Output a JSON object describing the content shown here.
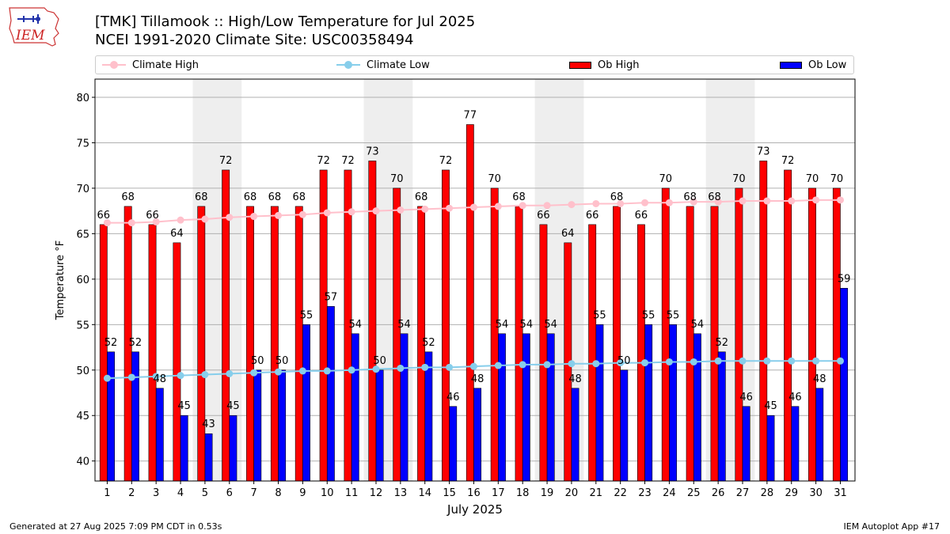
{
  "logo_text": "IEM",
  "title_line1": "[TMK] Tillamook :: High/Low Temperature for Jul 2025",
  "title_line2": "NCEI 1991-2020 Climate Site: USC00358494",
  "footer_left": "Generated at 27 Aug 2025 7:09 PM CDT in 0.53s",
  "footer_right": "IEM Autoplot App #17",
  "legend": {
    "climate_high": "Climate High",
    "climate_low": "Climate Low",
    "ob_high": "Ob High",
    "ob_low": "Ob Low"
  },
  "colors": {
    "ob_high": "#ff0000",
    "ob_low": "#0000ff",
    "climate_high": "#ffc0cb",
    "climate_low": "#87ceeb",
    "weekend_shade": "#eeeeee",
    "grid": "#b0b0b0"
  },
  "chart_data": {
    "type": "bar",
    "xlabel": "July 2025",
    "ylabel": "Temperature °F",
    "ylim": [
      37.8,
      82
    ],
    "yticks": [
      40,
      45,
      50,
      55,
      60,
      65,
      70,
      75,
      80
    ],
    "grid": "horizontal",
    "legend_position": "top",
    "categories": [
      "1",
      "2",
      "3",
      "4",
      "5",
      "6",
      "7",
      "8",
      "9",
      "10",
      "11",
      "12",
      "13",
      "14",
      "15",
      "16",
      "17",
      "18",
      "19",
      "20",
      "21",
      "22",
      "23",
      "24",
      "25",
      "26",
      "27",
      "28",
      "29",
      "30",
      "31"
    ],
    "shaded_day_ranges": [
      [
        5,
        6
      ],
      [
        12,
        13
      ],
      [
        19,
        20
      ],
      [
        26,
        27
      ]
    ],
    "series": [
      {
        "name": "Ob High",
        "kind": "bar",
        "values": [
          66,
          68,
          66,
          64,
          68,
          72,
          68,
          68,
          68,
          72,
          72,
          73,
          70,
          68,
          72,
          77,
          70,
          68,
          66,
          64,
          66,
          68,
          66,
          70,
          68,
          68,
          70,
          73,
          72,
          70,
          70
        ]
      },
      {
        "name": "Ob Low",
        "kind": "bar",
        "values": [
          52,
          52,
          48,
          45,
          43,
          45,
          50,
          50,
          55,
          57,
          54,
          50,
          54,
          52,
          46,
          48,
          54,
          54,
          54,
          48,
          55,
          50,
          55,
          55,
          54,
          52,
          46,
          45,
          46,
          48,
          59
        ]
      },
      {
        "name": "Climate High",
        "kind": "line",
        "values": [
          66.2,
          66.2,
          66.3,
          66.5,
          66.6,
          66.8,
          66.9,
          67.0,
          67.1,
          67.3,
          67.4,
          67.5,
          67.6,
          67.7,
          67.8,
          67.9,
          68.0,
          68.1,
          68.1,
          68.2,
          68.3,
          68.3,
          68.4,
          68.4,
          68.5,
          68.5,
          68.6,
          68.6,
          68.6,
          68.7,
          68.7
        ]
      },
      {
        "name": "Climate Low",
        "kind": "line",
        "values": [
          49.1,
          49.2,
          49.3,
          49.4,
          49.5,
          49.6,
          49.7,
          49.8,
          49.9,
          49.9,
          50.0,
          50.1,
          50.2,
          50.3,
          50.3,
          50.4,
          50.5,
          50.6,
          50.6,
          50.7,
          50.7,
          50.8,
          50.8,
          50.9,
          50.9,
          51.0,
          51.0,
          51.0,
          51.0,
          51.0,
          51.0
        ]
      }
    ]
  }
}
